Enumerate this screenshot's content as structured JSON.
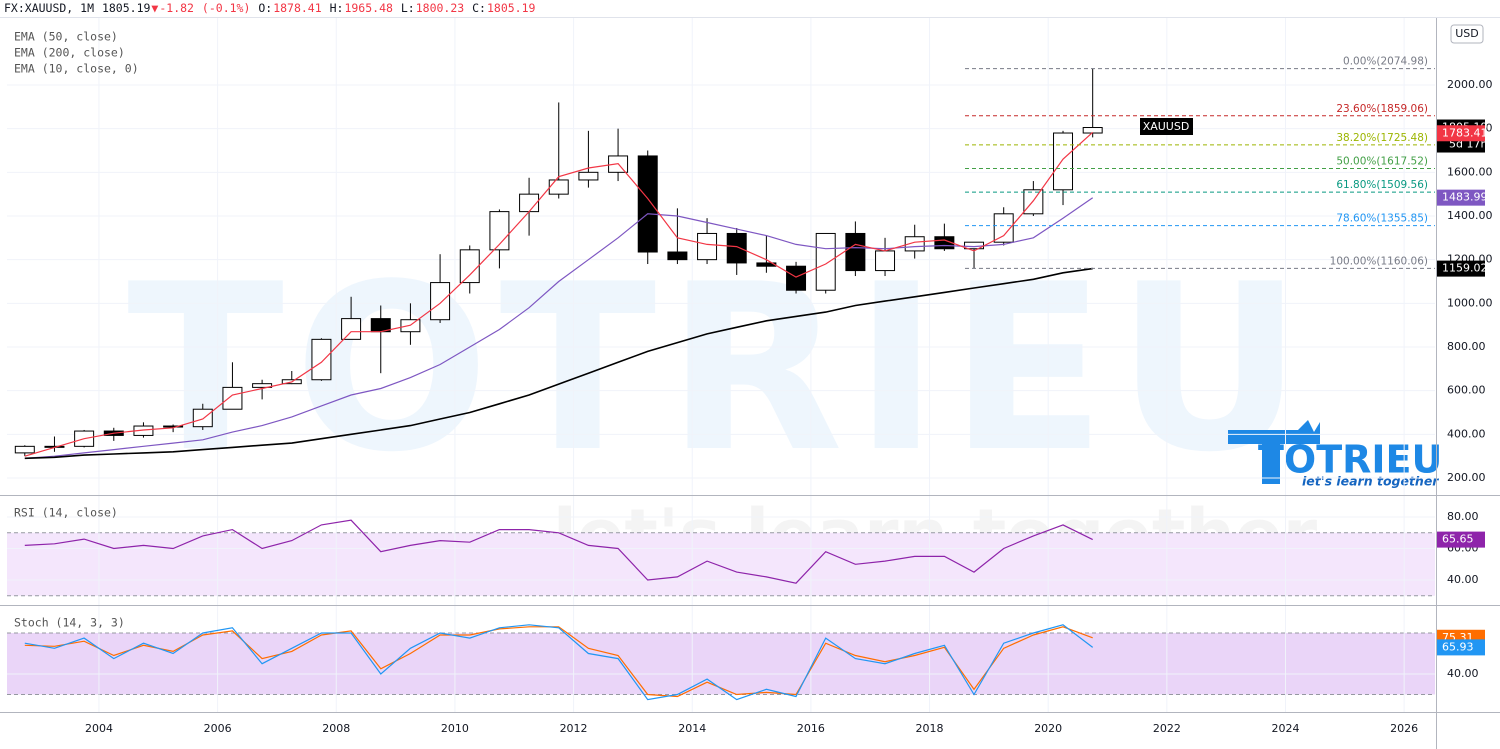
{
  "header": {
    "symbol": "FX:XAUUSD, 1M",
    "last": 1805.19,
    "arrow": "▼",
    "change": -1.82,
    "change_pct": "(-0.1%)",
    "ohlc": [
      {
        "label": "O:",
        "value": 1878.41
      },
      {
        "label": "H:",
        "value": 1965.48
      },
      {
        "label": "L:",
        "value": 1800.23
      },
      {
        "label": "C:",
        "value": 1805.19
      }
    ]
  },
  "currency": "USD",
  "symbol_tag": "XAUUSD",
  "countdown": "5d 17h",
  "watermark": {
    "brand": "TOTRIEU",
    "tagline": "let's learn together"
  },
  "chart_data": [
    {
      "type": "candlestick",
      "x": [
        2002.75,
        2003.25,
        2003.75,
        2004.25,
        2004.75,
        2005.25,
        2005.75,
        2006.25,
        2006.75,
        2007.25,
        2007.75,
        2008.25,
        2008.75,
        2009.25,
        2009.75,
        2010.25,
        2010.75,
        2011.25,
        2011.75,
        2012.25,
        2012.75,
        2013.25,
        2013.75,
        2014.25,
        2014.75,
        2015.25,
        2015.75,
        2016.25,
        2016.75,
        2017.25,
        2017.75,
        2018.25,
        2018.75,
        2019.25,
        2019.75,
        2020.25,
        2020.75
      ],
      "open": [
        315,
        345,
        345,
        415,
        395,
        438,
        435,
        515,
        615,
        632,
        650,
        835,
        930,
        870,
        925,
        1095,
        1245,
        1420,
        1500,
        1565,
        1600,
        1675,
        1235,
        1200,
        1320,
        1185,
        1170,
        1060,
        1320,
        1150,
        1240,
        1305,
        1250,
        1280,
        1410,
        1520,
        1780
      ],
      "high": [
        350,
        390,
        420,
        430,
        455,
        445,
        540,
        730,
        650,
        690,
        840,
        1030,
        990,
        1000,
        1225,
        1265,
        1430,
        1575,
        1920,
        1790,
        1800,
        1700,
        1435,
        1390,
        1345,
        1310,
        1190,
        1320,
        1375,
        1300,
        1360,
        1365,
        1265,
        1440,
        1560,
        1790,
        2075
      ],
      "low": [
        300,
        320,
        340,
        370,
        385,
        410,
        420,
        515,
        560,
        630,
        645,
        835,
        680,
        810,
        910,
        1045,
        1160,
        1310,
        1480,
        1530,
        1560,
        1180,
        1180,
        1180,
        1130,
        1140,
        1045,
        1045,
        1125,
        1125,
        1205,
        1240,
        1160,
        1265,
        1400,
        1450,
        1760
      ],
      "close": [
        345,
        345,
        415,
        395,
        438,
        435,
        515,
        615,
        632,
        650,
        835,
        930,
        870,
        925,
        1095,
        1245,
        1420,
        1500,
        1565,
        1600,
        1675,
        1235,
        1200,
        1320,
        1185,
        1170,
        1060,
        1320,
        1150,
        1240,
        1305,
        1250,
        1280,
        1410,
        1520,
        1780,
        1805.19
      ],
      "up_color": "#ffffff",
      "down_color": "#000000",
      "xlim": [
        2002.45,
        2026.52
      ],
      "ylim": [
        126.7,
        2306.8
      ],
      "yticks": [
        {
          "value": 200,
          "label": "200.00"
        },
        {
          "value": 400,
          "label": "400.00"
        },
        {
          "value": 600,
          "label": "600.00"
        },
        {
          "value": 800,
          "label": "800.00"
        },
        {
          "value": 1000,
          "label": "1000.00"
        },
        {
          "value": 1200,
          "label": "1200.00"
        },
        {
          "value": 1400,
          "label": "1400.00"
        },
        {
          "value": 1600,
          "label": "1600.00"
        },
        {
          "value": 1800,
          "label": "1800.00"
        },
        {
          "value": 2000,
          "label": "2000.00"
        }
      ],
      "series": [
        {
          "name": "EMA (50, close)",
          "color": "#7e57c2",
          "values": [
            290,
            300,
            315,
            330,
            345,
            360,
            375,
            410,
            440,
            480,
            530,
            580,
            610,
            660,
            720,
            800,
            880,
            980,
            1100,
            1200,
            1300,
            1410,
            1400,
            1370,
            1340,
            1310,
            1270,
            1250,
            1255,
            1250,
            1260,
            1265,
            1260,
            1270,
            1300,
            1390,
            1483.99
          ]
        },
        {
          "name": "EMA (200, close)",
          "color": "#000000",
          "values": [
            290,
            295,
            305,
            310,
            315,
            320,
            330,
            340,
            350,
            360,
            380,
            400,
            420,
            440,
            470,
            500,
            540,
            580,
            630,
            680,
            730,
            780,
            820,
            860,
            890,
            920,
            940,
            960,
            990,
            1010,
            1030,
            1050,
            1070,
            1090,
            1110,
            1140,
            1159.02
          ]
        },
        {
          "name": "EMA (10, close, 0)",
          "color": "#f23645",
          "values": [
            300,
            340,
            380,
            405,
            420,
            430,
            470,
            580,
            610,
            640,
            730,
            870,
            870,
            900,
            1000,
            1130,
            1270,
            1420,
            1580,
            1620,
            1640,
            1480,
            1300,
            1270,
            1260,
            1200,
            1120,
            1180,
            1270,
            1240,
            1280,
            1290,
            1240,
            1310,
            1470,
            1660,
            1783.41
          ]
        }
      ],
      "fib_levels": [
        {
          "label": "0.00%(2074.98)",
          "value": 2074.98,
          "color": "#787b86"
        },
        {
          "label": "23.60%(1859.06)",
          "value": 1859.06,
          "color": "#c62828"
        },
        {
          "label": "38.20%(1725.48)",
          "value": 1725.48,
          "color": "#9cb500"
        },
        {
          "label": "50.00%(1617.52)",
          "value": 1617.52,
          "color": "#43a047"
        },
        {
          "label": "61.80%(1509.56)",
          "value": 1509.56,
          "color": "#089981"
        },
        {
          "label": "78.60%(1355.85)",
          "value": 1355.85,
          "color": "#2196f3"
        },
        {
          "label": "100.00%(1160.06)",
          "value": 1160.06,
          "color": "#787b86"
        }
      ]
    },
    {
      "type": "line",
      "xlim": [
        2002.45,
        2026.52
      ],
      "ylim": [
        25.4,
        92.7
      ],
      "yticks": [
        {
          "value": 40,
          "label": "40.00"
        },
        {
          "value": 60,
          "label": "60.00"
        },
        {
          "value": 80,
          "label": "80.00"
        }
      ],
      "bands": [
        30,
        70
      ],
      "band_color": "#f4e6fc",
      "series": [
        {
          "name": "RSI (14, close)",
          "color": "#8e24aa",
          "values": [
            62,
            63,
            66,
            60,
            62,
            60,
            68,
            72,
            60,
            65,
            75,
            78,
            58,
            62,
            65,
            64,
            72,
            72,
            70,
            62,
            60,
            40,
            42,
            52,
            45,
            42,
            38,
            58,
            50,
            52,
            55,
            55,
            45,
            60,
            68,
            75,
            65.65
          ]
        }
      ]
    },
    {
      "type": "line",
      "title": "Stoch (14, 3, 3)",
      "xlim": [
        2002.45,
        2026.52
      ],
      "ylim": [
        2.9,
        106.3
      ],
      "yticks": [
        {
          "value": 40,
          "label": "40.00"
        }
      ],
      "bands": [
        20,
        80
      ],
      "band_color": "#ead5f8",
      "xticks": [
        2004,
        2006,
        2008,
        2010,
        2012,
        2014,
        2016,
        2018,
        2020,
        2022,
        2024,
        2026
      ],
      "series": [
        {
          "color": "#ff6d00",
          "values": [
            68,
            67,
            72,
            58,
            68,
            62,
            78,
            82,
            55,
            62,
            78,
            82,
            45,
            60,
            78,
            78,
            84,
            86,
            86,
            65,
            58,
            20,
            18,
            32,
            20,
            22,
            20,
            70,
            58,
            52,
            58,
            66,
            25,
            65,
            78,
            86,
            75.31
          ]
        },
        {
          "color": "#2196f3",
          "values": [
            70,
            65,
            75,
            55,
            70,
            60,
            80,
            85,
            50,
            65,
            80,
            80,
            40,
            65,
            80,
            75,
            85,
            88,
            85,
            60,
            55,
            15,
            20,
            35,
            15,
            25,
            18,
            75,
            55,
            50,
            60,
            68,
            20,
            70,
            80,
            88,
            65.93
          ]
        }
      ]
    }
  ]
}
